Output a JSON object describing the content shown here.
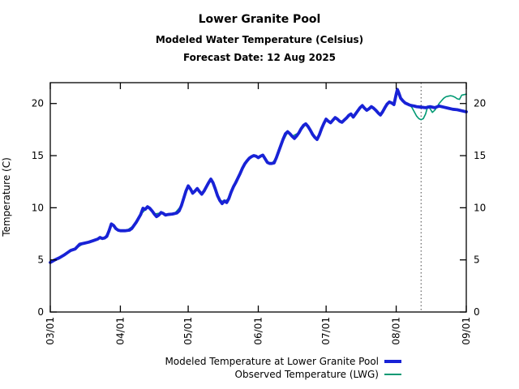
{
  "header": {
    "title": "Lower Granite Pool",
    "subtitle": "Modeled Water Temperature (Celsius)",
    "forecast_label": "Forecast Date: 12 Aug 2025"
  },
  "chart_data": {
    "type": "line",
    "title": "Lower Granite Pool",
    "xlabel": "",
    "ylabel": "Temperature (C)",
    "ylim": [
      0,
      22
    ],
    "yticks": [
      0,
      5,
      10,
      15,
      20
    ],
    "x_unit": "days since 03/01",
    "xlim": [
      0,
      184
    ],
    "xticks": [
      0,
      31,
      61,
      92,
      122,
      153,
      184
    ],
    "xtick_labels": [
      "03/01",
      "04/01",
      "05/01",
      "06/01",
      "07/01",
      "08/01",
      "09/01"
    ],
    "grid": false,
    "legend_position": "below-plot-right",
    "forecast_line": {
      "day": 164,
      "date_label": "12 Aug 2025",
      "color": "#444444",
      "style": "dotted"
    },
    "frame_color": "#000000",
    "background_color": "#ffffff",
    "series": [
      {
        "name": "Modeled Temperature at Lower Granite Pool",
        "color": "#1822d6",
        "width": 3.8,
        "points": [
          [
            0,
            4.75
          ],
          [
            2,
            5.0
          ],
          [
            4,
            5.2
          ],
          [
            6,
            5.45
          ],
          [
            8,
            5.75
          ],
          [
            9,
            5.9
          ],
          [
            11,
            6.05
          ],
          [
            13,
            6.5
          ],
          [
            15,
            6.6
          ],
          [
            17,
            6.7
          ],
          [
            19,
            6.85
          ],
          [
            21,
            7.0
          ],
          [
            22,
            7.15
          ],
          [
            23,
            7.05
          ],
          [
            24,
            7.1
          ],
          [
            25,
            7.25
          ],
          [
            26,
            7.8
          ],
          [
            27,
            8.45
          ],
          [
            28,
            8.3
          ],
          [
            29,
            8.0
          ],
          [
            30,
            7.85
          ],
          [
            31,
            7.8
          ],
          [
            33,
            7.8
          ],
          [
            35,
            7.85
          ],
          [
            36,
            8.0
          ],
          [
            38,
            8.6
          ],
          [
            40,
            9.35
          ],
          [
            41,
            9.95
          ],
          [
            42,
            9.85
          ],
          [
            43,
            10.1
          ],
          [
            44,
            9.95
          ],
          [
            45,
            9.7
          ],
          [
            46,
            9.4
          ],
          [
            47,
            9.15
          ],
          [
            48,
            9.3
          ],
          [
            49,
            9.55
          ],
          [
            50,
            9.45
          ],
          [
            51,
            9.3
          ],
          [
            52,
            9.35
          ],
          [
            54,
            9.4
          ],
          [
            56,
            9.5
          ],
          [
            57,
            9.7
          ],
          [
            58,
            10.2
          ],
          [
            59,
            10.9
          ],
          [
            60,
            11.6
          ],
          [
            61,
            12.1
          ],
          [
            62,
            11.8
          ],
          [
            63,
            11.4
          ],
          [
            64,
            11.6
          ],
          [
            65,
            11.85
          ],
          [
            66,
            11.55
          ],
          [
            67,
            11.3
          ],
          [
            68,
            11.6
          ],
          [
            69,
            12.0
          ],
          [
            70,
            12.4
          ],
          [
            71,
            12.75
          ],
          [
            72,
            12.4
          ],
          [
            73,
            11.8
          ],
          [
            74,
            11.15
          ],
          [
            75,
            10.7
          ],
          [
            76,
            10.4
          ],
          [
            77,
            10.65
          ],
          [
            78,
            10.5
          ],
          [
            79,
            10.9
          ],
          [
            80,
            11.5
          ],
          [
            81,
            12.0
          ],
          [
            82,
            12.4
          ],
          [
            83,
            12.85
          ],
          [
            84,
            13.3
          ],
          [
            85,
            13.8
          ],
          [
            86,
            14.2
          ],
          [
            87,
            14.5
          ],
          [
            88,
            14.75
          ],
          [
            89,
            14.9
          ],
          [
            90,
            15.0
          ],
          [
            91,
            14.95
          ],
          [
            92,
            14.8
          ],
          [
            93,
            14.95
          ],
          [
            94,
            15.05
          ],
          [
            95,
            14.7
          ],
          [
            96,
            14.35
          ],
          [
            97,
            14.25
          ],
          [
            98,
            14.25
          ],
          [
            99,
            14.3
          ],
          [
            100,
            14.8
          ],
          [
            101,
            15.4
          ],
          [
            102,
            16.0
          ],
          [
            103,
            16.6
          ],
          [
            104,
            17.1
          ],
          [
            105,
            17.3
          ],
          [
            106,
            17.1
          ],
          [
            107,
            16.85
          ],
          [
            108,
            16.65
          ],
          [
            109,
            16.9
          ],
          [
            110,
            17.2
          ],
          [
            111,
            17.6
          ],
          [
            112,
            17.9
          ],
          [
            113,
            18.05
          ],
          [
            114,
            17.8
          ],
          [
            115,
            17.45
          ],
          [
            116,
            17.05
          ],
          [
            117,
            16.75
          ],
          [
            118,
            16.55
          ],
          [
            119,
            17.0
          ],
          [
            120,
            17.6
          ],
          [
            121,
            18.1
          ],
          [
            122,
            18.5
          ],
          [
            123,
            18.3
          ],
          [
            124,
            18.15
          ],
          [
            125,
            18.4
          ],
          [
            126,
            18.65
          ],
          [
            127,
            18.5
          ],
          [
            128,
            18.3
          ],
          [
            129,
            18.2
          ],
          [
            130,
            18.4
          ],
          [
            131,
            18.6
          ],
          [
            132,
            18.85
          ],
          [
            133,
            19.0
          ],
          [
            134,
            18.7
          ],
          [
            135,
            19.0
          ],
          [
            136,
            19.3
          ],
          [
            137,
            19.6
          ],
          [
            138,
            19.8
          ],
          [
            139,
            19.55
          ],
          [
            140,
            19.35
          ],
          [
            141,
            19.5
          ],
          [
            142,
            19.7
          ],
          [
            143,
            19.55
          ],
          [
            144,
            19.35
          ],
          [
            145,
            19.1
          ],
          [
            146,
            18.9
          ],
          [
            147,
            19.2
          ],
          [
            148,
            19.6
          ],
          [
            149,
            19.95
          ],
          [
            150,
            20.15
          ],
          [
            151,
            20.05
          ],
          [
            152,
            19.9
          ],
          [
            153,
            20.9
          ],
          [
            153.5,
            21.35
          ],
          [
            154,
            21.1
          ],
          [
            155,
            20.5
          ],
          [
            156,
            20.25
          ],
          [
            157,
            20.05
          ],
          [
            158,
            19.95
          ],
          [
            159,
            19.85
          ],
          [
            160,
            19.8
          ],
          [
            161,
            19.75
          ],
          [
            162,
            19.7
          ],
          [
            164,
            19.65
          ],
          [
            166,
            19.6
          ],
          [
            168,
            19.7
          ],
          [
            170,
            19.6
          ],
          [
            172,
            19.75
          ],
          [
            174,
            19.65
          ],
          [
            176,
            19.55
          ],
          [
            178,
            19.45
          ],
          [
            180,
            19.4
          ],
          [
            182,
            19.3
          ],
          [
            184,
            19.2
          ]
        ]
      },
      {
        "name": "Observed Temperature (LWG)",
        "color": "#009973",
        "width": 1.6,
        "points": [
          [
            0,
            4.75
          ],
          [
            3,
            5.1
          ],
          [
            6,
            5.45
          ],
          [
            9,
            5.9
          ],
          [
            12,
            6.2
          ],
          [
            15,
            6.6
          ],
          [
            18,
            6.8
          ],
          [
            21,
            7.0
          ],
          [
            24,
            7.1
          ],
          [
            26,
            7.8
          ],
          [
            27,
            8.4
          ],
          [
            29,
            8.0
          ],
          [
            31,
            7.8
          ],
          [
            34,
            7.85
          ],
          [
            37,
            8.3
          ],
          [
            40,
            9.35
          ],
          [
            43,
            10.05
          ],
          [
            46,
            9.4
          ],
          [
            49,
            9.5
          ],
          [
            52,
            9.35
          ],
          [
            55,
            9.45
          ],
          [
            58,
            10.2
          ],
          [
            61,
            12.0
          ],
          [
            63,
            11.45
          ],
          [
            65,
            11.8
          ],
          [
            67,
            11.35
          ],
          [
            69,
            12.0
          ],
          [
            71,
            12.7
          ],
          [
            73,
            11.8
          ],
          [
            75,
            10.7
          ],
          [
            77,
            10.6
          ],
          [
            79,
            10.9
          ],
          [
            82,
            12.4
          ],
          [
            85,
            13.8
          ],
          [
            88,
            14.7
          ],
          [
            90,
            14.95
          ],
          [
            92,
            14.8
          ],
          [
            94,
            15.0
          ],
          [
            96,
            14.4
          ],
          [
            98,
            14.25
          ],
          [
            100,
            14.8
          ],
          [
            102,
            16.0
          ],
          [
            105,
            17.25
          ],
          [
            107,
            16.85
          ],
          [
            110,
            17.2
          ],
          [
            113,
            18.0
          ],
          [
            115,
            17.45
          ],
          [
            118,
            16.6
          ],
          [
            120,
            17.6
          ],
          [
            122,
            18.45
          ],
          [
            124,
            18.2
          ],
          [
            126,
            18.6
          ],
          [
            129,
            18.25
          ],
          [
            131,
            18.6
          ],
          [
            133,
            18.95
          ],
          [
            134,
            18.75
          ],
          [
            136,
            19.3
          ],
          [
            138,
            19.75
          ],
          [
            140,
            19.4
          ],
          [
            142,
            19.65
          ],
          [
            144,
            19.35
          ],
          [
            146,
            18.9
          ],
          [
            148,
            19.6
          ],
          [
            150,
            20.1
          ],
          [
            152,
            19.9
          ],
          [
            153.5,
            21.3
          ],
          [
            155,
            20.5
          ],
          [
            157,
            20.05
          ],
          [
            159,
            19.85
          ],
          [
            160,
            19.6
          ],
          [
            161,
            19.2
          ],
          [
            162,
            18.8
          ],
          [
            163,
            18.55
          ],
          [
            164,
            18.45
          ],
          [
            165,
            18.55
          ],
          [
            166,
            19.0
          ],
          [
            167,
            19.75
          ],
          [
            168,
            19.5
          ],
          [
            169,
            19.15
          ],
          [
            170,
            19.35
          ],
          [
            171,
            19.65
          ],
          [
            172,
            20.0
          ],
          [
            173,
            20.25
          ],
          [
            174,
            20.5
          ],
          [
            175,
            20.65
          ],
          [
            176,
            20.7
          ],
          [
            177,
            20.75
          ],
          [
            178,
            20.7
          ],
          [
            179,
            20.6
          ],
          [
            180,
            20.45
          ],
          [
            181,
            20.4
          ],
          [
            182,
            20.8
          ],
          [
            183,
            20.85
          ],
          [
            184,
            20.9
          ]
        ]
      }
    ]
  }
}
